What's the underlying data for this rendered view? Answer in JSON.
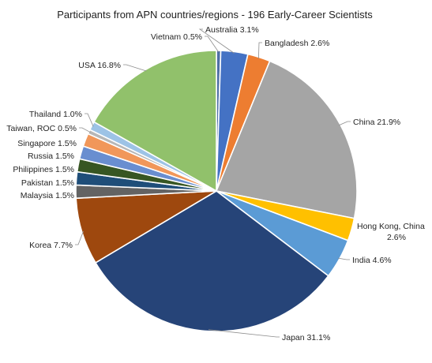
{
  "chart_data": {
    "type": "pie",
    "title": "Participants from APN countries/regions - 196 Early-Career Scientists",
    "unit": "%",
    "slices": [
      {
        "name": "Vietnam",
        "label": "Vietnam 0.5%",
        "value": 0.5,
        "color": "#4f6fa6"
      },
      {
        "name": "Australia",
        "label": "Australia 3.1%",
        "value": 3.1,
        "color": "#4472c4"
      },
      {
        "name": "Bangladesh",
        "label": "Bangladesh 2.6%",
        "value": 2.6,
        "color": "#ed7d31"
      },
      {
        "name": "China",
        "label": "China 21.9%",
        "value": 21.9,
        "color": "#a5a5a5"
      },
      {
        "name": "Hong Kong, China",
        "label": "Hong Kong, China\n2.6%",
        "value": 2.6,
        "color": "#ffc000"
      },
      {
        "name": "India",
        "label": "India 4.6%",
        "value": 4.6,
        "color": "#5b9bd5"
      },
      {
        "name": "Japan",
        "label": "Japan 31.1%",
        "value": 31.1,
        "color": "#264478"
      },
      {
        "name": "Korea",
        "label": "Korea 7.7%",
        "value": 7.7,
        "color": "#9e480e"
      },
      {
        "name": "Malaysia",
        "label": "Malaysia  1.5%",
        "value": 1.5,
        "color": "#636363"
      },
      {
        "name": "Pakistan",
        "label": "Pakistan 1.5%",
        "value": 1.5,
        "color": "#1f4e79"
      },
      {
        "name": "Philippines",
        "label": "Philippines 1.5%",
        "value": 1.5,
        "color": "#375623"
      },
      {
        "name": "Russia",
        "label": "Russia 1.5%",
        "value": 1.5,
        "color": "#698ed0"
      },
      {
        "name": "Singapore",
        "label": "Singapore 1.5%",
        "value": 1.5,
        "color": "#f1975a"
      },
      {
        "name": "Taiwan, ROC",
        "label": "Taiwan, ROC 0.5%",
        "value": 0.5,
        "color": "#b7b7b7"
      },
      {
        "name": "Thailand",
        "label": "Thailand 1.0%",
        "value": 1.0,
        "color": "#9dc3e6"
      },
      {
        "name": "USA",
        "label": "USA 16.8%",
        "value": 16.8,
        "color": "#91c16b"
      }
    ]
  }
}
